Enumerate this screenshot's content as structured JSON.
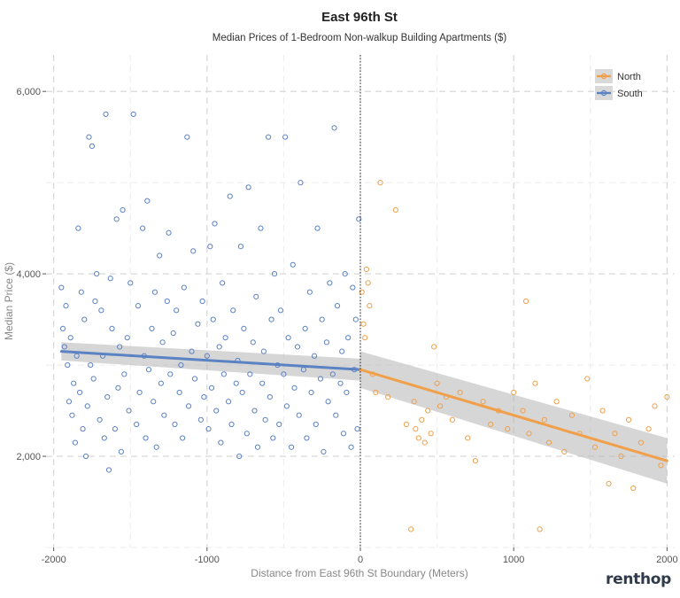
{
  "brand": "renthop",
  "chart_data": {
    "type": "scatter",
    "title": "East 96th St",
    "subtitle": "Median Prices of 1-Bedroom Non-walkup Building Apartments ($)",
    "xlabel": "Distance from East 96th St Boundary (Meters)",
    "ylabel": "Median Price ($)",
    "xlim": [
      -2050,
      2050
    ],
    "ylim": [
      1000,
      6400
    ],
    "x_ticks": [
      -2000,
      -1000,
      0,
      1000,
      2000
    ],
    "x_tick_labels": [
      "-2000",
      "-1000",
      "0",
      "1000",
      "2000"
    ],
    "y_ticks": [
      2000,
      4000,
      6000
    ],
    "y_tick_labels": [
      "2,000",
      "4,000",
      "6,000"
    ],
    "grid": true,
    "legend_position": "top-right",
    "boundary_x": 0,
    "series": [
      {
        "name": "South",
        "color": "#5b82c2",
        "trend": {
          "x": [
            -1950,
            0
          ],
          "y": [
            3150,
            2950
          ],
          "ci_start": [
            3050,
            3250
          ],
          "ci_end": [
            2830,
            3070
          ]
        },
        "points": [
          [
            -1950,
            3850
          ],
          [
            -1940,
            3400
          ],
          [
            -1930,
            3200
          ],
          [
            -1920,
            3650
          ],
          [
            -1910,
            3000
          ],
          [
            -1900,
            2600
          ],
          [
            -1890,
            3300
          ],
          [
            -1880,
            2450
          ],
          [
            -1870,
            2800
          ],
          [
            -1860,
            2150
          ],
          [
            -1850,
            3100
          ],
          [
            -1840,
            4500
          ],
          [
            -1830,
            2700
          ],
          [
            -1820,
            3800
          ],
          [
            -1810,
            2300
          ],
          [
            -1800,
            3500
          ],
          [
            -1790,
            2000
          ],
          [
            -1780,
            2550
          ],
          [
            -1770,
            5500
          ],
          [
            -1760,
            3000
          ],
          [
            -1750,
            5400
          ],
          [
            -1740,
            2850
          ],
          [
            -1730,
            3700
          ],
          [
            -1720,
            4000
          ],
          [
            -1700,
            2400
          ],
          [
            -1690,
            3600
          ],
          [
            -1680,
            3100
          ],
          [
            -1670,
            2200
          ],
          [
            -1660,
            5750
          ],
          [
            -1650,
            2650
          ],
          [
            -1640,
            1850
          ],
          [
            -1630,
            3950
          ],
          [
            -1620,
            3400
          ],
          [
            -1600,
            2300
          ],
          [
            -1590,
            4600
          ],
          [
            -1580,
            2750
          ],
          [
            -1570,
            3200
          ],
          [
            -1560,
            2050
          ],
          [
            -1550,
            4700
          ],
          [
            -1540,
            2900
          ],
          [
            -1520,
            3300
          ],
          [
            -1510,
            2500
          ],
          [
            -1500,
            3900
          ],
          [
            -1480,
            5750
          ],
          [
            -1460,
            2350
          ],
          [
            -1450,
            3650
          ],
          [
            -1440,
            2700
          ],
          [
            -1420,
            4500
          ],
          [
            -1410,
            3100
          ],
          [
            -1400,
            2200
          ],
          [
            -1390,
            4800
          ],
          [
            -1380,
            2950
          ],
          [
            -1360,
            3400
          ],
          [
            -1350,
            2600
          ],
          [
            -1340,
            3800
          ],
          [
            -1330,
            2100
          ],
          [
            -1310,
            4200
          ],
          [
            -1300,
            2800
          ],
          [
            -1290,
            3250
          ],
          [
            -1280,
            2450
          ],
          [
            -1260,
            3700
          ],
          [
            -1250,
            4450
          ],
          [
            -1240,
            2900
          ],
          [
            -1220,
            3350
          ],
          [
            -1210,
            2350
          ],
          [
            -1200,
            3600
          ],
          [
            -1180,
            2700
          ],
          [
            -1170,
            3000
          ],
          [
            -1160,
            2200
          ],
          [
            -1150,
            3850
          ],
          [
            -1130,
            5500
          ],
          [
            -1120,
            2550
          ],
          [
            -1100,
            3150
          ],
          [
            -1090,
            4250
          ],
          [
            -1080,
            2850
          ],
          [
            -1060,
            3450
          ],
          [
            -1040,
            2400
          ],
          [
            -1030,
            3700
          ],
          [
            -1020,
            2650
          ],
          [
            -1000,
            3100
          ],
          [
            -990,
            2300
          ],
          [
            -980,
            4300
          ],
          [
            -970,
            2750
          ],
          [
            -960,
            3500
          ],
          [
            -950,
            4550
          ],
          [
            -940,
            2500
          ],
          [
            -920,
            3200
          ],
          [
            -910,
            2150
          ],
          [
            -900,
            3900
          ],
          [
            -890,
            2900
          ],
          [
            -880,
            3300
          ],
          [
            -860,
            2600
          ],
          [
            -850,
            4850
          ],
          [
            -840,
            2350
          ],
          [
            -830,
            3600
          ],
          [
            -810,
            2800
          ],
          [
            -800,
            3050
          ],
          [
            -790,
            2000
          ],
          [
            -780,
            4300
          ],
          [
            -770,
            2700
          ],
          [
            -760,
            3400
          ],
          [
            -740,
            2250
          ],
          [
            -730,
            4950
          ],
          [
            -720,
            2900
          ],
          [
            -700,
            3250
          ],
          [
            -690,
            2500
          ],
          [
            -680,
            3750
          ],
          [
            -670,
            2100
          ],
          [
            -650,
            4500
          ],
          [
            -640,
            2800
          ],
          [
            -630,
            3150
          ],
          [
            -620,
            2400
          ],
          [
            -600,
            5500
          ],
          [
            -590,
            2650
          ],
          [
            -580,
            3500
          ],
          [
            -570,
            2200
          ],
          [
            -560,
            4000
          ],
          [
            -540,
            3000
          ],
          [
            -530,
            2350
          ],
          [
            -520,
            3600
          ],
          [
            -500,
            2900
          ],
          [
            -490,
            5500
          ],
          [
            -480,
            2550
          ],
          [
            -470,
            3300
          ],
          [
            -450,
            2100
          ],
          [
            -440,
            4100
          ],
          [
            -430,
            2750
          ],
          [
            -410,
            3200
          ],
          [
            -400,
            2450
          ],
          [
            -390,
            5000
          ],
          [
            -370,
            2950
          ],
          [
            -360,
            3400
          ],
          [
            -350,
            2200
          ],
          [
            -330,
            3800
          ],
          [
            -320,
            2700
          ],
          [
            -300,
            3100
          ],
          [
            -290,
            2350
          ],
          [
            -280,
            4500
          ],
          [
            -260,
            2850
          ],
          [
            -250,
            3500
          ],
          [
            -240,
            2050
          ],
          [
            -220,
            3250
          ],
          [
            -210,
            2600
          ],
          [
            -200,
            3900
          ],
          [
            -180,
            2900
          ],
          [
            -170,
            5600
          ],
          [
            -160,
            2450
          ],
          [
            -150,
            3650
          ],
          [
            -130,
            2800
          ],
          [
            -120,
            3150
          ],
          [
            -110,
            2250
          ],
          [
            -100,
            4000
          ],
          [
            -90,
            2700
          ],
          [
            -80,
            3300
          ],
          [
            -60,
            2100
          ],
          [
            -50,
            3850
          ],
          [
            -40,
            2950
          ],
          [
            -30,
            3500
          ],
          [
            -20,
            2300
          ],
          [
            -10,
            4600
          ]
        ]
      },
      {
        "name": "North",
        "color": "#f0a04b",
        "trend": {
          "x": [
            0,
            2000
          ],
          "y": [
            2950,
            1950
          ],
          "ci_start": [
            2750,
            3150
          ],
          "ci_end": [
            1700,
            2200
          ]
        },
        "points": [
          [
            10,
            3800
          ],
          [
            20,
            3450
          ],
          [
            30,
            3300
          ],
          [
            40,
            4050
          ],
          [
            50,
            3900
          ],
          [
            60,
            3650
          ],
          [
            80,
            2900
          ],
          [
            100,
            2700
          ],
          [
            130,
            5000
          ],
          [
            180,
            2650
          ],
          [
            230,
            4700
          ],
          [
            300,
            2350
          ],
          [
            330,
            1200
          ],
          [
            350,
            2600
          ],
          [
            360,
            2300
          ],
          [
            380,
            2200
          ],
          [
            400,
            2400
          ],
          [
            420,
            2150
          ],
          [
            440,
            2500
          ],
          [
            460,
            2250
          ],
          [
            480,
            3200
          ],
          [
            500,
            2800
          ],
          [
            520,
            2550
          ],
          [
            560,
            2650
          ],
          [
            600,
            2400
          ],
          [
            650,
            2700
          ],
          [
            700,
            2200
          ],
          [
            750,
            1950
          ],
          [
            800,
            2600
          ],
          [
            850,
            2350
          ],
          [
            900,
            2500
          ],
          [
            960,
            2300
          ],
          [
            1000,
            2700
          ],
          [
            1060,
            2500
          ],
          [
            1080,
            3700
          ],
          [
            1100,
            2250
          ],
          [
            1140,
            2800
          ],
          [
            1170,
            1200
          ],
          [
            1200,
            2400
          ],
          [
            1230,
            2150
          ],
          [
            1280,
            2600
          ],
          [
            1330,
            2050
          ],
          [
            1380,
            2450
          ],
          [
            1430,
            2250
          ],
          [
            1480,
            2850
          ],
          [
            1530,
            2100
          ],
          [
            1580,
            2500
          ],
          [
            1620,
            1700
          ],
          [
            1660,
            2250
          ],
          [
            1700,
            2000
          ],
          [
            1750,
            2400
          ],
          [
            1780,
            1650
          ],
          [
            1830,
            2150
          ],
          [
            1880,
            2300
          ],
          [
            1920,
            2550
          ],
          [
            1960,
            1900
          ],
          [
            2000,
            2650
          ]
        ]
      }
    ]
  }
}
